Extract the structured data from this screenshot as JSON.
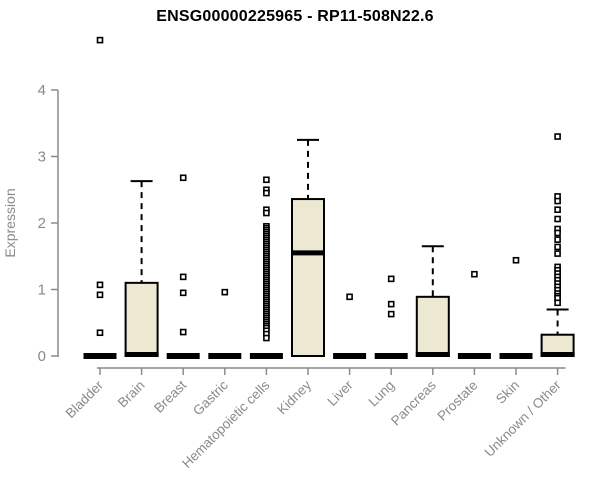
{
  "page": {
    "background": "#ffffff"
  },
  "chart_data": {
    "type": "boxplot",
    "title": "ENSG00000225965 - RP11-508N22.6",
    "xlabel": "",
    "ylabel": "Expression",
    "ylim": [
      0,
      4
    ],
    "yticks": [
      0,
      1,
      2,
      3,
      4
    ],
    "grid": false,
    "legend": "none",
    "axis_color": "#8a8a8a",
    "box_fill": "#ede8d1",
    "box_border": "#000000",
    "outlier_fill": "#ffffff",
    "categories": [
      "Bladder",
      "Brain",
      "Breast",
      "Gastric",
      "Hematopoietic cells",
      "Kidney",
      "Liver",
      "Lung",
      "Pancreas",
      "Prostate",
      "Skin",
      "Unknown / Other"
    ],
    "boxes": [
      {
        "category": "Bladder",
        "q1": 0,
        "median": 0,
        "q3": 0,
        "whisker_low": 0,
        "whisker_high": 0,
        "outliers": [
          4.75,
          1.07,
          0.92,
          0.35
        ]
      },
      {
        "category": "Brain",
        "q1": 0,
        "median": 0,
        "q3": 1.1,
        "whisker_low": 0,
        "whisker_high": 2.63,
        "outliers": []
      },
      {
        "category": "Breast",
        "q1": 0,
        "median": 0,
        "q3": 0,
        "whisker_low": 0,
        "whisker_high": 0,
        "outliers": [
          2.68,
          1.19,
          0.95,
          0.36
        ]
      },
      {
        "category": "Gastric",
        "q1": 0,
        "median": 0,
        "q3": 0,
        "whisker_low": 0,
        "whisker_high": 0,
        "outliers": [
          0.96
        ]
      },
      {
        "category": "Hematopoietic cells",
        "q1": 0,
        "median": 0,
        "q3": 0,
        "whisker_low": 0,
        "whisker_high": 0,
        "outliers": [
          2.65,
          2.5,
          2.45,
          2.2,
          2.15,
          1.95,
          1.92,
          1.89,
          1.86,
          1.83,
          1.8,
          1.77,
          1.74,
          1.71,
          1.68,
          1.65,
          1.62,
          1.59,
          1.56,
          1.53,
          1.5,
          1.47,
          1.44,
          1.41,
          1.38,
          1.35,
          1.32,
          1.29,
          1.26,
          1.23,
          1.2,
          1.17,
          1.14,
          1.11,
          1.08,
          1.05,
          1.02,
          0.99,
          0.96,
          0.93,
          0.9,
          0.87,
          0.84,
          0.81,
          0.78,
          0.75,
          0.72,
          0.69,
          0.66,
          0.63,
          0.6,
          0.57,
          0.54,
          0.51,
          0.48,
          0.45,
          0.42,
          0.38,
          0.33,
          0.27
        ]
      },
      {
        "category": "Kidney",
        "q1": 0,
        "median": 1.55,
        "q3": 2.36,
        "whisker_low": 0,
        "whisker_high": 3.25,
        "outliers": []
      },
      {
        "category": "Liver",
        "q1": 0,
        "median": 0,
        "q3": 0,
        "whisker_low": 0,
        "whisker_high": 0,
        "outliers": [
          0.89
        ]
      },
      {
        "category": "Lung",
        "q1": 0,
        "median": 0,
        "q3": 0,
        "whisker_low": 0,
        "whisker_high": 0,
        "outliers": [
          1.16,
          0.78,
          0.63
        ]
      },
      {
        "category": "Pancreas",
        "q1": 0,
        "median": 0,
        "q3": 0.89,
        "whisker_low": 0,
        "whisker_high": 1.65,
        "outliers": []
      },
      {
        "category": "Prostate",
        "q1": 0,
        "median": 0,
        "q3": 0,
        "whisker_low": 0,
        "whisker_high": 0,
        "outliers": [
          1.23
        ]
      },
      {
        "category": "Skin",
        "q1": 0,
        "median": 0,
        "q3": 0,
        "whisker_low": 0,
        "whisker_high": 0,
        "outliers": [
          1.44
        ]
      },
      {
        "category": "Unknown / Other",
        "q1": 0,
        "median": 0,
        "q3": 0.32,
        "whisker_low": 0,
        "whisker_high": 0.7,
        "outliers": [
          3.3,
          2.4,
          2.33,
          2.2,
          2.06,
          1.91,
          1.85,
          1.75,
          1.64,
          1.54,
          1.34,
          1.29,
          1.24,
          1.19,
          1.14,
          1.09,
          1.04,
          0.99,
          0.94,
          0.9,
          0.87,
          0.8
        ]
      }
    ]
  }
}
